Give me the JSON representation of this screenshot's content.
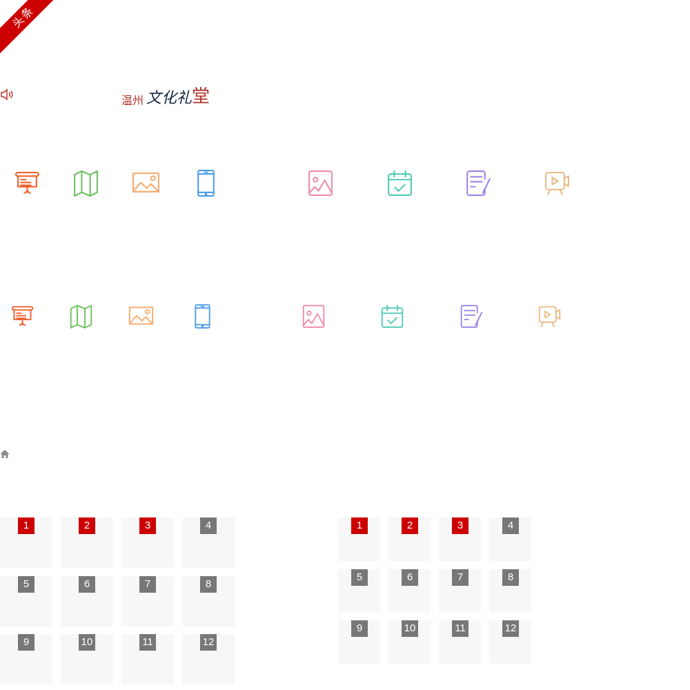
{
  "ribbon": {
    "label": "头条",
    "color": "#cc0000"
  },
  "audio": {
    "icon": "speaker-icon",
    "color": "#b5312a"
  },
  "logo": {
    "part1": "温州",
    "part2": "文化礼",
    "part3": "堂"
  },
  "icon_rows": [
    [
      {
        "icon": "presentation-board-icon",
        "color": "#f15a24"
      },
      {
        "icon": "map-icon",
        "color": "#6abf5e"
      },
      {
        "icon": "landscape-image-icon",
        "color": "#f7a96b"
      },
      {
        "icon": "mobile-phone-icon",
        "color": "#4a9ce8"
      },
      {
        "icon": "portrait-image-icon",
        "color": "#f08aab"
      },
      {
        "icon": "calendar-check-icon",
        "color": "#4ccab5"
      },
      {
        "icon": "document-edit-icon",
        "color": "#9b82e6"
      },
      {
        "icon": "video-camera-icon",
        "color": "#e9b985"
      }
    ],
    [
      {
        "icon": "presentation-board-icon",
        "color": "#f15a24"
      },
      {
        "icon": "map-icon",
        "color": "#6abf5e"
      },
      {
        "icon": "landscape-image-icon",
        "color": "#f7a96b"
      },
      {
        "icon": "mobile-phone-icon",
        "color": "#4a9ce8"
      },
      {
        "icon": "portrait-image-icon",
        "color": "#f08aab"
      },
      {
        "icon": "calendar-check-icon",
        "color": "#4ccab5"
      },
      {
        "icon": "document-edit-icon",
        "color": "#9b82e6"
      },
      {
        "icon": "video-camera-icon",
        "color": "#e9b985"
      }
    ]
  ],
  "home": {
    "icon": "home-icon",
    "color": "#8a8a8a"
  },
  "ranking_colors": {
    "top": "#cc0000",
    "rest": "#777777",
    "cell_bg": "#f7f7f7"
  },
  "grids": [
    {
      "items": [
        "1",
        "2",
        "3",
        "4",
        "5",
        "6",
        "7",
        "8",
        "9",
        "10",
        "11",
        "12"
      ]
    },
    {
      "items": [
        "1",
        "2",
        "3",
        "4",
        "5",
        "6",
        "7",
        "8",
        "9",
        "10",
        "11",
        "12"
      ]
    }
  ]
}
